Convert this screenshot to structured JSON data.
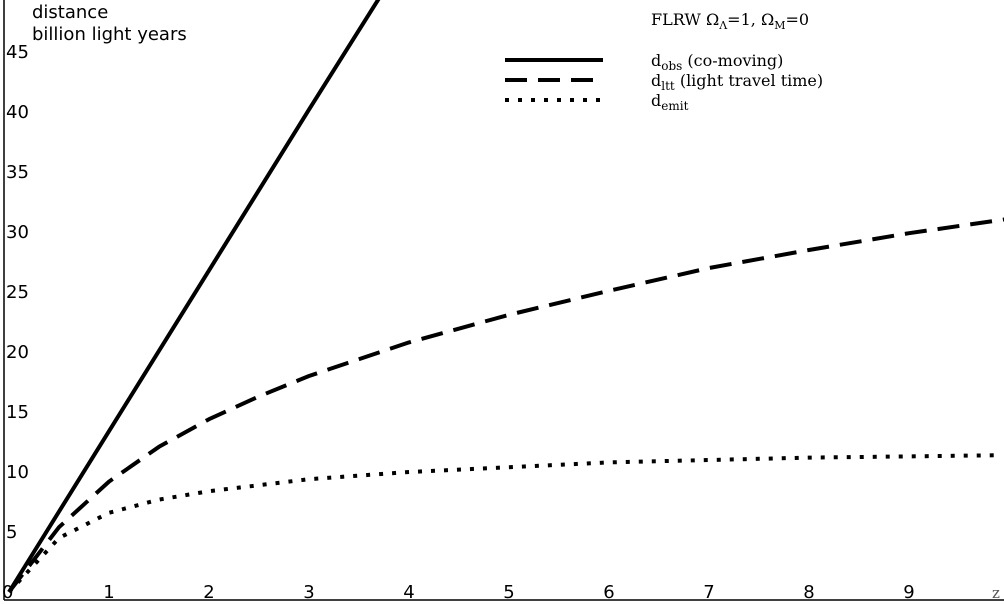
{
  "chart_data": {
    "type": "line",
    "title": "FLRW Ω",
    "title_parts": {
      "omega": "Ω",
      "lambda_sub": "Λ",
      "lambda_val": "=1, ",
      "omega_m": "Ω",
      "m_sub": "M",
      "m_val": "=0"
    },
    "ylabel_line1": "distance",
    "ylabel_line2": "billion light years",
    "xlabel": "z",
    "xlim": [
      0,
      10
    ],
    "ylim": [
      0,
      50
    ],
    "x_ticks": [
      "0",
      "1",
      "2",
      "3",
      "4",
      "5",
      "6",
      "7",
      "8",
      "9"
    ],
    "y_ticks": [
      "5",
      "10",
      "15",
      "20",
      "25",
      "30",
      "35",
      "40",
      "45"
    ],
    "y_tick_values": [
      5,
      10,
      15,
      20,
      25,
      30,
      35,
      40,
      45
    ],
    "origin_label": "0",
    "grid": false,
    "legend_position": "top-right",
    "series": [
      {
        "name": "d",
        "sub": "obs",
        "suffix": " (co-moving)",
        "style": "solid",
        "x": [
          0,
          1,
          2,
          3,
          3.74
        ],
        "values": [
          0,
          13.4,
          26.8,
          40.2,
          50
        ]
      },
      {
        "name": "d",
        "sub": "ltt",
        "suffix": " (light travel time)",
        "style": "dashed",
        "x": [
          0,
          0.5,
          1,
          1.5,
          2,
          2.5,
          3,
          4,
          5,
          6,
          7,
          8,
          9,
          10
        ],
        "values": [
          0,
          5.4,
          9.2,
          12.1,
          14.4,
          16.3,
          18.0,
          20.8,
          23.1,
          25.1,
          27.0,
          28.5,
          29.9,
          31.1
        ]
      },
      {
        "name": "d",
        "sub": "emit",
        "suffix": "",
        "style": "dotted",
        "x": [
          0,
          0.5,
          1,
          1.5,
          2,
          3,
          4,
          5,
          6,
          7,
          8,
          9,
          9.9
        ],
        "values": [
          0,
          4.5,
          6.6,
          7.7,
          8.4,
          9.4,
          10.0,
          10.4,
          10.8,
          11.0,
          11.2,
          11.3,
          11.4
        ]
      }
    ]
  }
}
